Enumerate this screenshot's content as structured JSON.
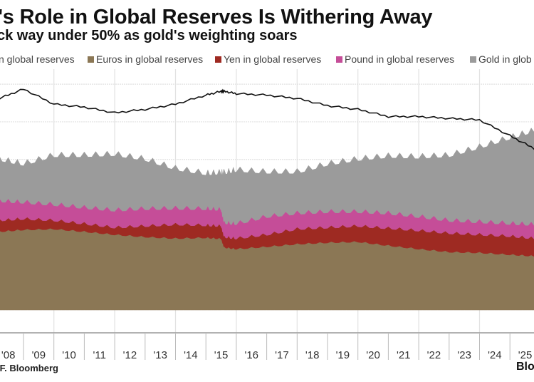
{
  "header": {
    "title": "r's Role in Global Reserves Is Withering Away",
    "subtitle": "ck way under 50% as gold's weighting soars"
  },
  "legend": [
    {
      "label": "n global reserves",
      "color": null
    },
    {
      "label": "Euros in global reserves",
      "color": "#8b7755"
    },
    {
      "label": "Yen in global reserves",
      "color": "#9e2a22"
    },
    {
      "label": "Pound in global reserves",
      "color": "#c54d98"
    },
    {
      "label": "Gold in glob",
      "color": "#9b9b9b"
    }
  ],
  "footer": {
    "source": "IF. Bloomberg",
    "brand": "Blo"
  },
  "chart_data": {
    "type": "area",
    "stacked": true,
    "ylim": [
      0,
      64
    ],
    "xlim": [
      2008.2,
      2025.8
    ],
    "grid": true,
    "legend_position": "top",
    "x_tick_labels": [
      "'08",
      "'09",
      "'10",
      "'11",
      "'12",
      "'13",
      "'14",
      "'15",
      "'16",
      "'17",
      "'18",
      "'19",
      "'20",
      "'21",
      "'22",
      "'23",
      "'24",
      "'25"
    ],
    "x": [
      2008.2,
      2009.0,
      2010.0,
      2011.0,
      2012.0,
      2013.0,
      2014.0,
      2015.0,
      2015.5,
      2015.6,
      2016.0,
      2017.0,
      2018.0,
      2019.0,
      2020.0,
      2021.0,
      2022.0,
      2023.0,
      2024.0,
      2025.0,
      2025.8
    ],
    "series": [
      {
        "name": "Euros in global reserves",
        "color": "#8b7755",
        "values": [
          20.8,
          21.3,
          21.5,
          20.8,
          20.0,
          19.4,
          19.0,
          19.2,
          18.9,
          16.6,
          16.2,
          16.8,
          17.5,
          17.9,
          18.1,
          17.1,
          16.2,
          15.4,
          15.2,
          14.7,
          14.3
        ]
      },
      {
        "name": "Yen in global reserves",
        "color": "#9e2a22",
        "values": [
          3.0,
          2.9,
          2.3,
          2.1,
          1.9,
          2.9,
          3.7,
          3.3,
          3.4,
          2.8,
          2.8,
          3.2,
          4.0,
          4.0,
          4.2,
          4.6,
          4.9,
          5.0,
          4.8,
          4.9,
          4.7
        ]
      },
      {
        "name": "Pound in global reserves",
        "color": "#c54d98",
        "values": [
          5.2,
          4.4,
          4.2,
          4.3,
          4.6,
          4.6,
          4.3,
          4.4,
          4.4,
          3.8,
          3.9,
          4.8,
          4.2,
          4.2,
          3.8,
          4.0,
          3.7,
          3.4,
          3.4,
          3.4,
          3.7
        ]
      },
      {
        "name": "Gold in glob",
        "color": "#9b9b9b",
        "values": [
          11.0,
          10.1,
          13.0,
          13.8,
          14.8,
          13.1,
          10.5,
          9.3,
          9.7,
          13.2,
          14.2,
          11.8,
          10.9,
          12.6,
          13.9,
          15.1,
          15.8,
          17.2,
          19.8,
          22.7,
          24.9
        ]
      }
    ],
    "line": {
      "name": "n global reserves",
      "color": "#111111",
      "values": [
        56.2,
        58.7,
        54.7,
        53.9,
        52.4,
        53.3,
        54.7,
        57.1,
        58.1,
        58.1,
        57.5,
        57.1,
        56.2,
        54.3,
        53.3,
        51.4,
        51.4,
        50.9,
        50.5,
        46.3,
        42.9
      ]
    }
  }
}
